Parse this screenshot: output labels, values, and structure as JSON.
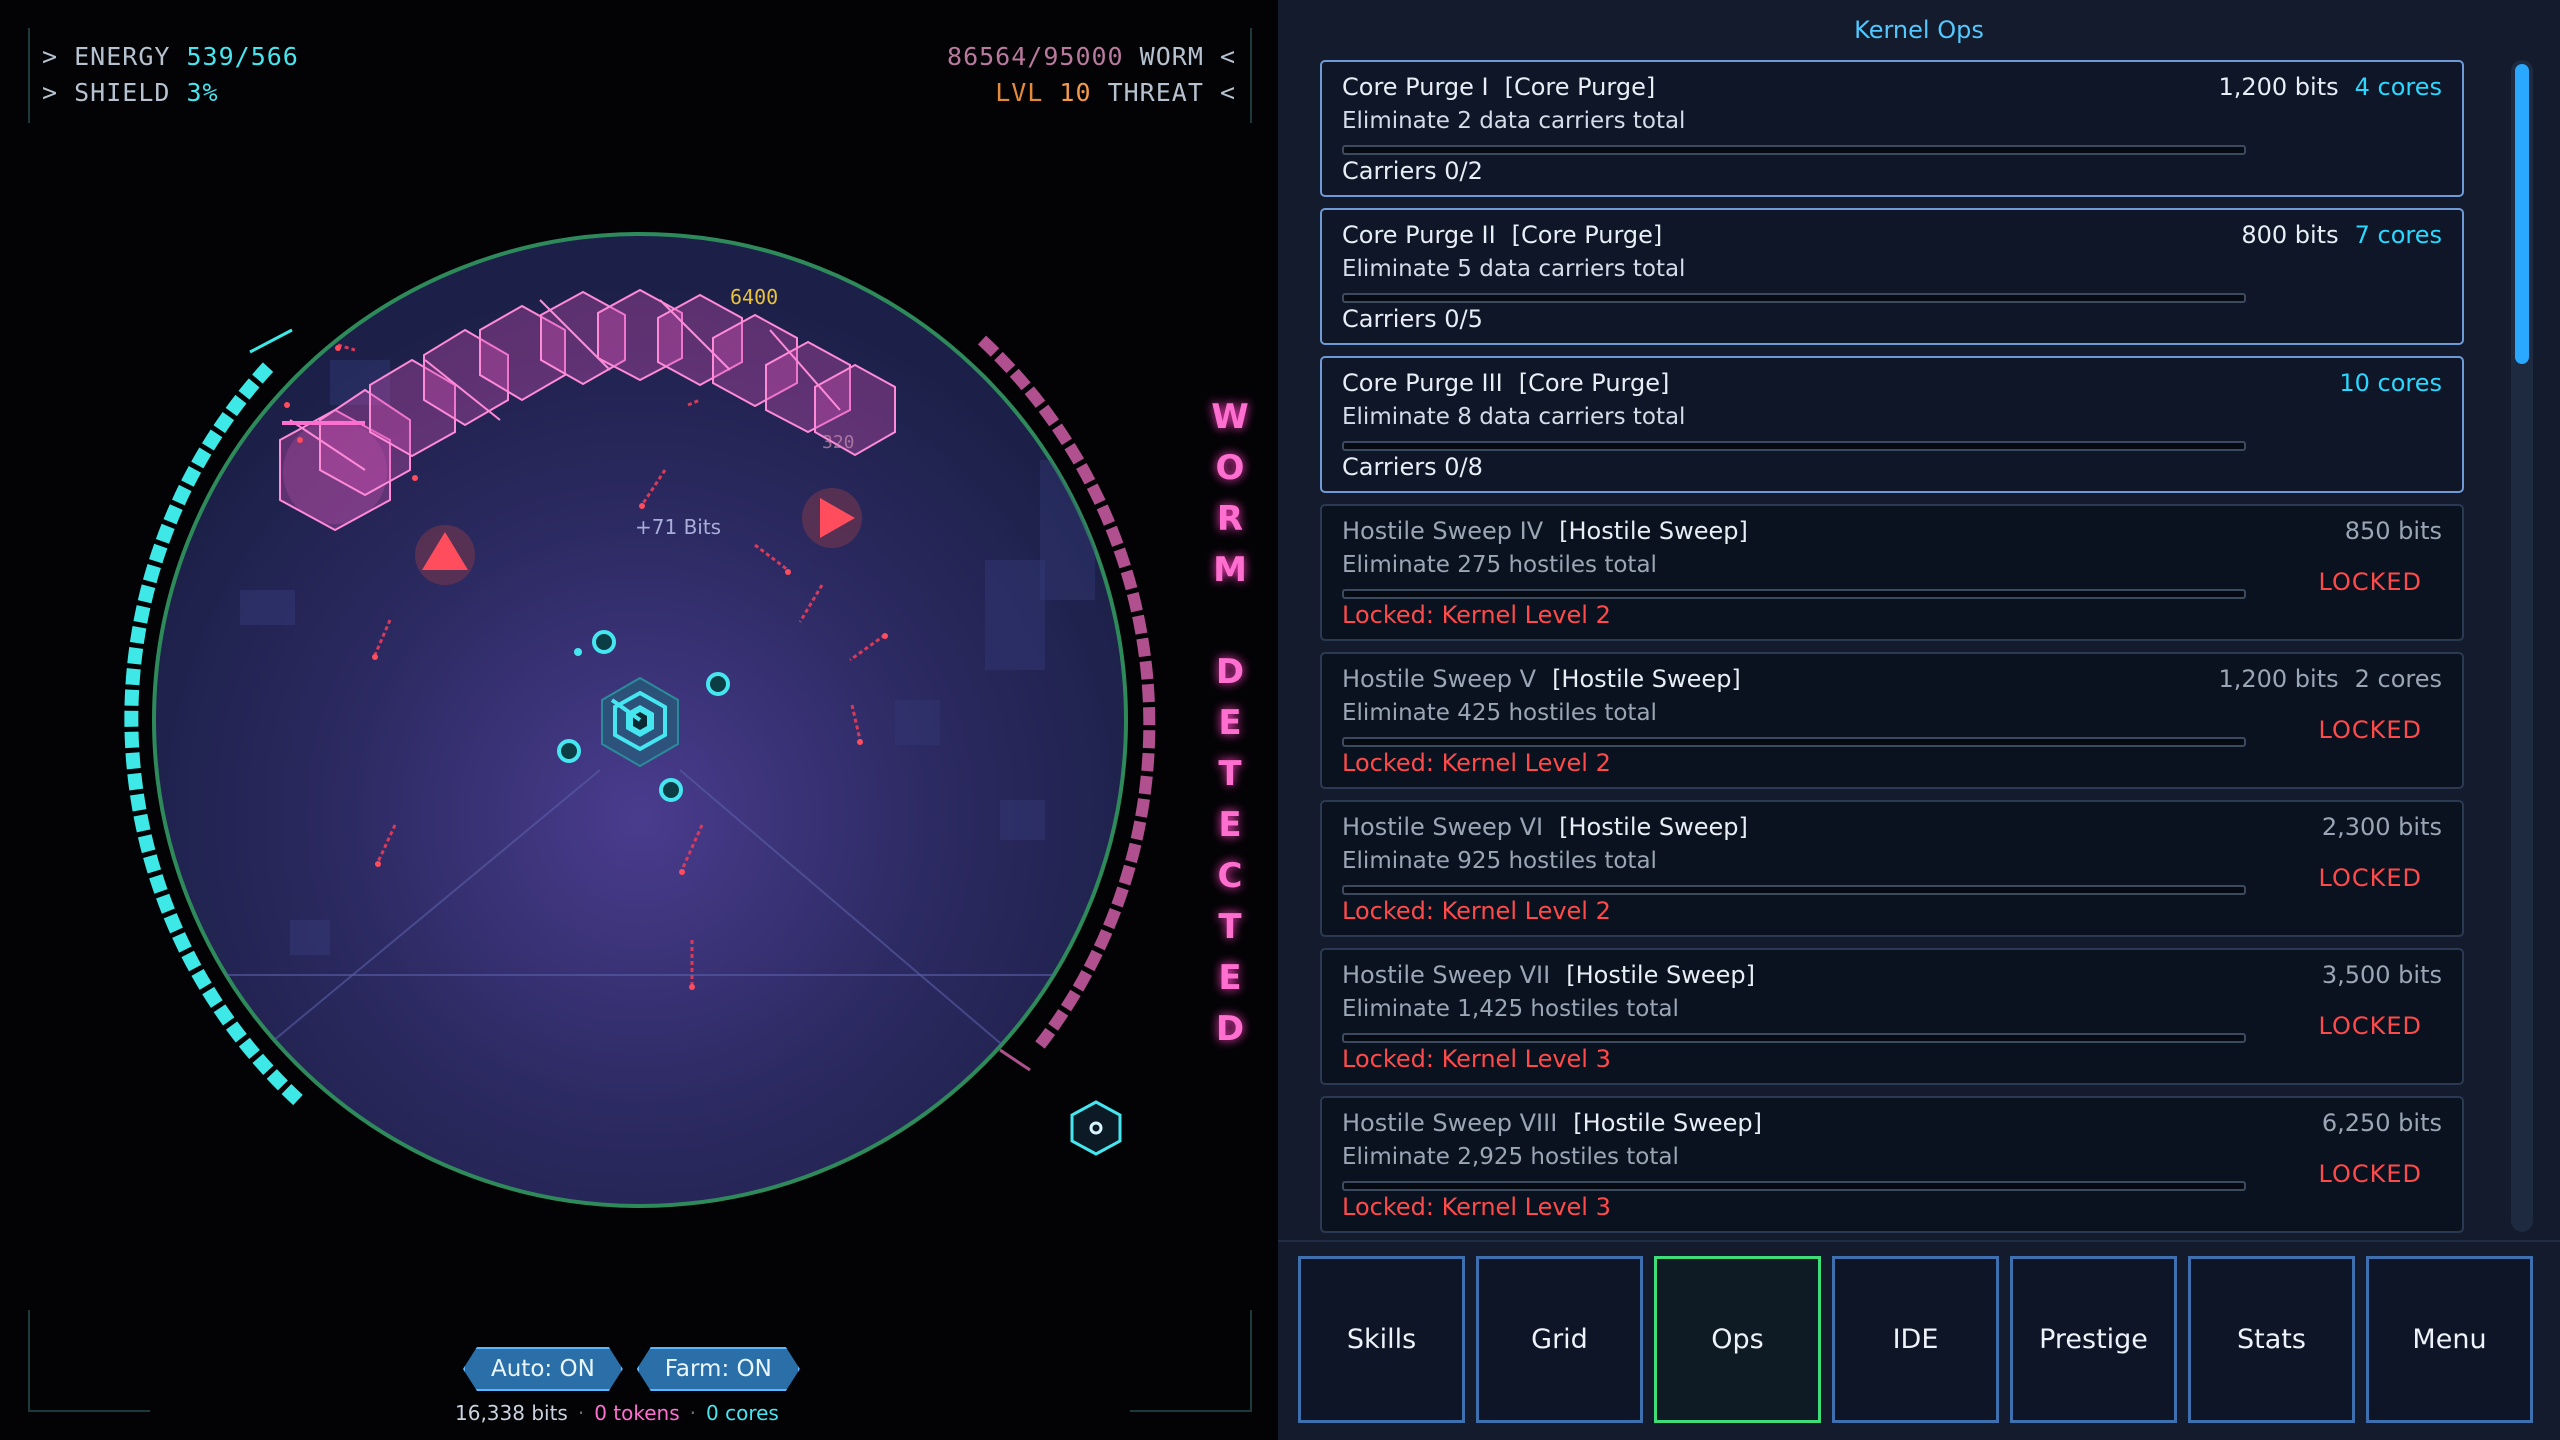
{
  "hud": {
    "energy_label": "ENERGY",
    "energy_value": "539/566",
    "shield_label": "SHIELD",
    "shield_value": "3%",
    "worm_hp": "86564/95000",
    "worm_label": "WORM",
    "level_label": "LVL",
    "level_value": "10",
    "threat_label": "THREAT"
  },
  "arena": {
    "floating_bits": "+71 Bits",
    "worm_damage_1": "6400",
    "worm_damage_2": "320",
    "worm_banner": "WORM DETECTED",
    "shield_fraction": 0.03,
    "colors": {
      "cyan": "#46e6f0",
      "pink": "#ff6fd0",
      "arena": "#3a3a7a"
    }
  },
  "controls": {
    "auto_label": "Auto: ON",
    "farm_label": "Farm: ON"
  },
  "currency": {
    "bits": "16,338 bits",
    "tokens": "0 tokens",
    "cores": "0 cores"
  },
  "panel": {
    "title": "Kernel Ops",
    "ops": [
      {
        "name": "Core Purge I",
        "category": "[Core Purge]",
        "desc": "Eliminate 2 data carriers total",
        "progress": "Carriers 0/2",
        "bits": "1,200 bits",
        "cores": "4 cores",
        "lock": "",
        "state": "active",
        "fraction": 0
      },
      {
        "name": "Core Purge II",
        "category": "[Core Purge]",
        "desc": "Eliminate 5 data carriers total",
        "progress": "Carriers 0/5",
        "bits": "800 bits",
        "cores": "7 cores",
        "lock": "",
        "state": "active",
        "fraction": 0
      },
      {
        "name": "Core Purge III",
        "category": "[Core Purge]",
        "desc": "Eliminate 8 data carriers total",
        "progress": "Carriers 0/8",
        "bits": "",
        "cores": "10 cores",
        "lock": "",
        "state": "active",
        "fraction": 0
      },
      {
        "name": "Hostile Sweep IV",
        "category": "[Hostile Sweep]",
        "desc": "Eliminate 275 hostiles total",
        "progress": "Locked: Kernel Level 2",
        "bits": "850 bits",
        "cores": "",
        "lock": "LOCKED",
        "state": "locked",
        "fraction": 0
      },
      {
        "name": "Hostile Sweep V",
        "category": "[Hostile Sweep]",
        "desc": "Eliminate 425 hostiles total",
        "progress": "Locked: Kernel Level 2",
        "bits": "1,200 bits",
        "cores": "2 cores",
        "lock": "LOCKED",
        "state": "locked",
        "fraction": 0
      },
      {
        "name": "Hostile Sweep VI",
        "category": "[Hostile Sweep]",
        "desc": "Eliminate 925 hostiles total",
        "progress": "Locked: Kernel Level 2",
        "bits": "2,300 bits",
        "cores": "",
        "lock": "LOCKED",
        "state": "locked",
        "fraction": 0
      },
      {
        "name": "Hostile Sweep VII",
        "category": "[Hostile Sweep]",
        "desc": "Eliminate 1,425 hostiles total",
        "progress": "Locked: Kernel Level 3",
        "bits": "3,500 bits",
        "cores": "",
        "lock": "LOCKED",
        "state": "locked",
        "fraction": 0
      },
      {
        "name": "Hostile Sweep VIII",
        "category": "[Hostile Sweep]",
        "desc": "Eliminate 2,925 hostiles total",
        "progress": "Locked: Kernel Level 3",
        "bits": "6,250 bits",
        "cores": "",
        "lock": "LOCKED",
        "state": "locked",
        "fraction": 0
      }
    ]
  },
  "nav": {
    "items": [
      "Skills",
      "Grid",
      "Ops",
      "IDE",
      "Prestige",
      "Stats",
      "Menu"
    ],
    "selected": "Ops"
  }
}
